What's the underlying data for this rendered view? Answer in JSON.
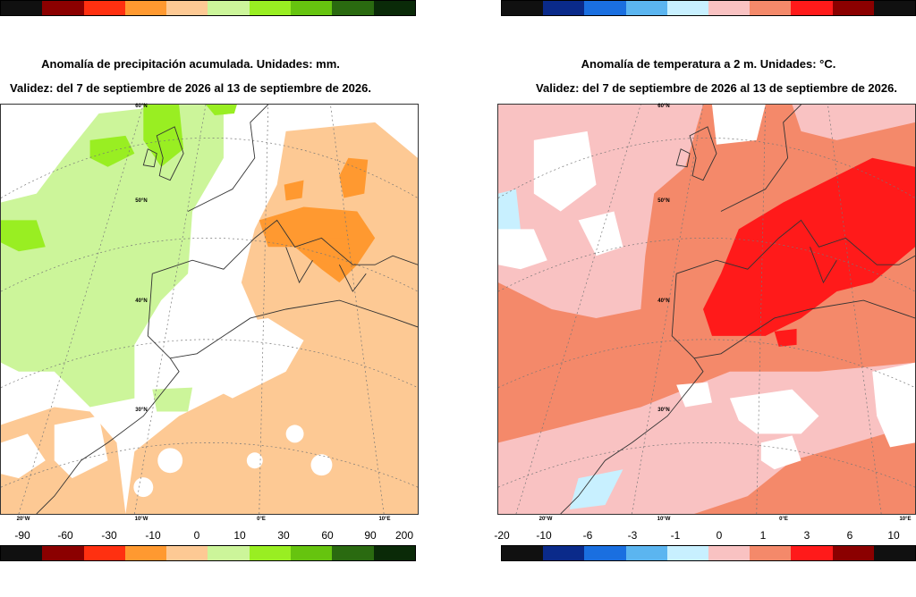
{
  "left_panel": {
    "title_line1": "Anomalía de precipitación acumulada. Unidades: mm.",
    "title_line2": "Validez: del 7 de septiembre de 2026 al 13 de septiembre de 2026.",
    "colorbar_colors": [
      "#101010",
      "#8b0000",
      "#ff3010",
      "#ff9930",
      "#fdc994",
      "#ccf59a",
      "#99ee22",
      "#66c40f",
      "#2a6a10",
      "#0a2a08"
    ],
    "tick_labels": [
      "-90",
      "-60",
      "-30",
      "-10",
      "0",
      "10",
      "30",
      "60",
      "90",
      "200"
    ],
    "lat_labels": [
      "60°N",
      "50°N",
      "40°N",
      "30°N"
    ],
    "lon_labels": [
      "20°W",
      "10°W",
      "0°E",
      "10°E"
    ]
  },
  "right_panel": {
    "title_line1": "Anomalía de temperatura a 2 m. Unidades: °C.",
    "title_line2": "Validez: del 7 de septiembre de 2026 al 13 de septiembre de 2026.",
    "colorbar_colors": [
      "#101010",
      "#0a2a8a",
      "#1a6fe0",
      "#5bb5f0",
      "#c8f0ff",
      "#f9c2c2",
      "#f4896a",
      "#ff1a1a",
      "#8b0000",
      "#101010"
    ],
    "tick_labels": [
      "-20",
      "-10",
      "-6",
      "-3",
      "-1",
      "0",
      "1",
      "3",
      "6",
      "10"
    ],
    "lat_labels": [
      "60°N",
      "50°N",
      "40°N",
      "30°N"
    ],
    "lon_labels": [
      "20°W",
      "10°W",
      "0°E",
      "10°E"
    ]
  }
}
